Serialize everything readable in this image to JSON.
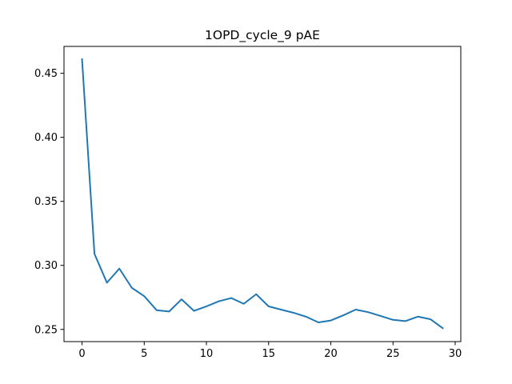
{
  "chart_data": {
    "type": "line",
    "title": "1OPD_cycle_9 pAE",
    "xlabel": "",
    "ylabel": "",
    "xlim": [
      -1.45,
      30.45
    ],
    "ylim": [
      0.2405,
      0.471
    ],
    "xticks": [
      0,
      5,
      10,
      15,
      20,
      25,
      30
    ],
    "xtick_labels": [
      "0",
      "5",
      "10",
      "15",
      "20",
      "25",
      "30"
    ],
    "yticks": [
      0.25,
      0.3,
      0.35,
      0.4,
      0.45
    ],
    "ytick_labels": [
      "0.25",
      "0.30",
      "0.35",
      "0.40",
      "0.45"
    ],
    "grid": false,
    "legend": "none",
    "line_color": "#1f77b4",
    "series": [
      {
        "x": [
          0,
          1,
          2,
          3,
          4,
          5,
          6,
          7,
          8,
          9,
          10,
          11,
          12,
          13,
          14,
          15,
          16,
          17,
          18,
          19,
          20,
          21,
          22,
          23,
          24,
          25,
          26,
          27,
          28,
          29
        ],
        "values": [
          0.461,
          0.309,
          0.2865,
          0.2975,
          0.2825,
          0.276,
          0.265,
          0.264,
          0.2735,
          0.2645,
          0.268,
          0.272,
          0.2745,
          0.27,
          0.2775,
          0.268,
          0.2655,
          0.263,
          0.26,
          0.2555,
          0.257,
          0.261,
          0.2655,
          0.2635,
          0.2605,
          0.2575,
          0.2565,
          0.26,
          0.258,
          0.251
        ]
      }
    ]
  }
}
